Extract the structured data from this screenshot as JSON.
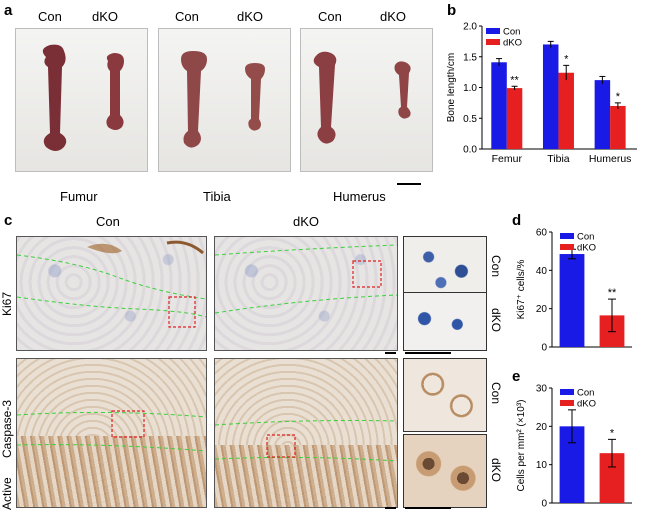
{
  "panel_a": {
    "letter": "a",
    "col_labels": [
      "Con",
      "dKO",
      "Con",
      "dKO",
      "Con",
      "dKO"
    ],
    "bone_labels": [
      "Fumur",
      "Tibia",
      "Humerus"
    ]
  },
  "panel_b": {
    "letter": "b"
  },
  "panel_c": {
    "letter": "c",
    "col_labels": [
      "Con",
      "dKO"
    ],
    "row_label_1": "Ki67",
    "row_label_2_a": "Caspase-3",
    "row_label_2_b": "Active",
    "thumb_labels": [
      "Con",
      "dKO",
      "Con",
      "dKO"
    ]
  },
  "panel_d": {
    "letter": "d"
  },
  "panel_e": {
    "letter": "e"
  },
  "chart_data": [
    {
      "type": "bar",
      "panel": "b",
      "categories": [
        "Femur",
        "Tibia",
        "Humerus"
      ],
      "series": [
        {
          "name": "Con",
          "values": [
            1.41,
            1.7,
            1.12
          ],
          "errors": [
            0.06,
            0.05,
            0.06
          ],
          "color": "#1a1ae6"
        },
        {
          "name": "dKO",
          "values": [
            0.99,
            1.24,
            0.7
          ],
          "errors": [
            0.03,
            0.12,
            0.05
          ],
          "color": "#e62020"
        }
      ],
      "significance": [
        "**",
        "*",
        "*"
      ],
      "ylabel": "Bone length/cm",
      "ylim": [
        0.0,
        2.0
      ],
      "yticks": [
        "0.0",
        "0.5",
        "1.0",
        "1.5",
        "2.0"
      ],
      "legend": [
        "Con",
        "dKO"
      ],
      "legend_position": "top-left"
    },
    {
      "type": "bar",
      "panel": "d",
      "categories": [
        "Con",
        "dKO"
      ],
      "values": [
        48.5,
        16.5
      ],
      "errors": [
        2.5,
        8.5
      ],
      "colors": [
        "#1a1ae6",
        "#e62020"
      ],
      "significance": [
        "",
        "**"
      ],
      "ylabel": "Ki67⁺ cells/%",
      "ylim": [
        0,
        60
      ],
      "yticks": [
        "0",
        "20",
        "40",
        "60"
      ],
      "legend": [
        "Con",
        "dKO"
      ],
      "legend_position": "top-left"
    },
    {
      "type": "bar",
      "panel": "e",
      "categories": [
        "Con",
        "dKO"
      ],
      "values": [
        20,
        13
      ],
      "errors": [
        4.3,
        3.6
      ],
      "colors": [
        "#1a1ae6",
        "#e62020"
      ],
      "significance": [
        "",
        "*"
      ],
      "ylabel": "Cells per mm² (×10³)",
      "ylim": [
        0,
        30
      ],
      "yticks": [
        "0",
        "10",
        "20",
        "30"
      ],
      "legend": [
        "Con",
        "dKO"
      ],
      "legend_position": "top-left"
    }
  ]
}
